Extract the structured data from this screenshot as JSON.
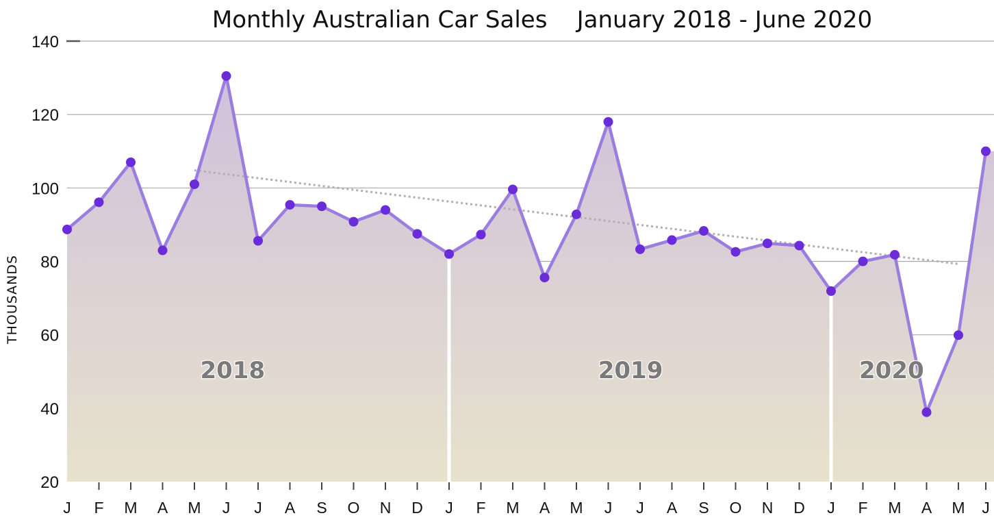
{
  "chart_data": {
    "type": "area",
    "title": "Monthly Australian Car Sales    January 2018 - June 2020",
    "ylabel": "THOUSANDS",
    "xlabel": "",
    "ylim": [
      20,
      140
    ],
    "yticks": [
      20,
      40,
      60,
      80,
      100,
      120,
      140
    ],
    "grid": true,
    "categories": [
      "J",
      "F",
      "M",
      "A",
      "M",
      "J",
      "J",
      "A",
      "S",
      "O",
      "N",
      "D",
      "J",
      "F",
      "M",
      "A",
      "M",
      "J",
      "J",
      "A",
      "S",
      "O",
      "N",
      "D",
      "J",
      "F",
      "M",
      "A",
      "M",
      "J"
    ],
    "series": [
      {
        "values": [
          88.7,
          96.1,
          107.0,
          83.0,
          101.0,
          130.5,
          85.6,
          95.4,
          95.0,
          90.8,
          94.0,
          87.5,
          82.0,
          87.3,
          99.6,
          75.6,
          92.8,
          118.0,
          83.3,
          85.8,
          88.3,
          82.6,
          84.9,
          84.3,
          71.9,
          80.0,
          81.8,
          38.9,
          59.9,
          110.0
        ]
      }
    ],
    "trendline": {
      "start_index": 4,
      "start_value": 104.8,
      "end_index": 28,
      "end_value": 79.3
    },
    "year_labels": [
      "2018",
      "2019",
      "2020"
    ],
    "year_start_indices": [
      0,
      12,
      24
    ],
    "colors": {
      "line": "#9b7ddf",
      "marker": "#6a2bd9",
      "fill_top": "#d0c0dc",
      "fill_bottom": "#e7e2cc",
      "grid": "#a8a8a8",
      "trend": "#b0b0b0",
      "year_label": "#7a7a7a"
    }
  }
}
